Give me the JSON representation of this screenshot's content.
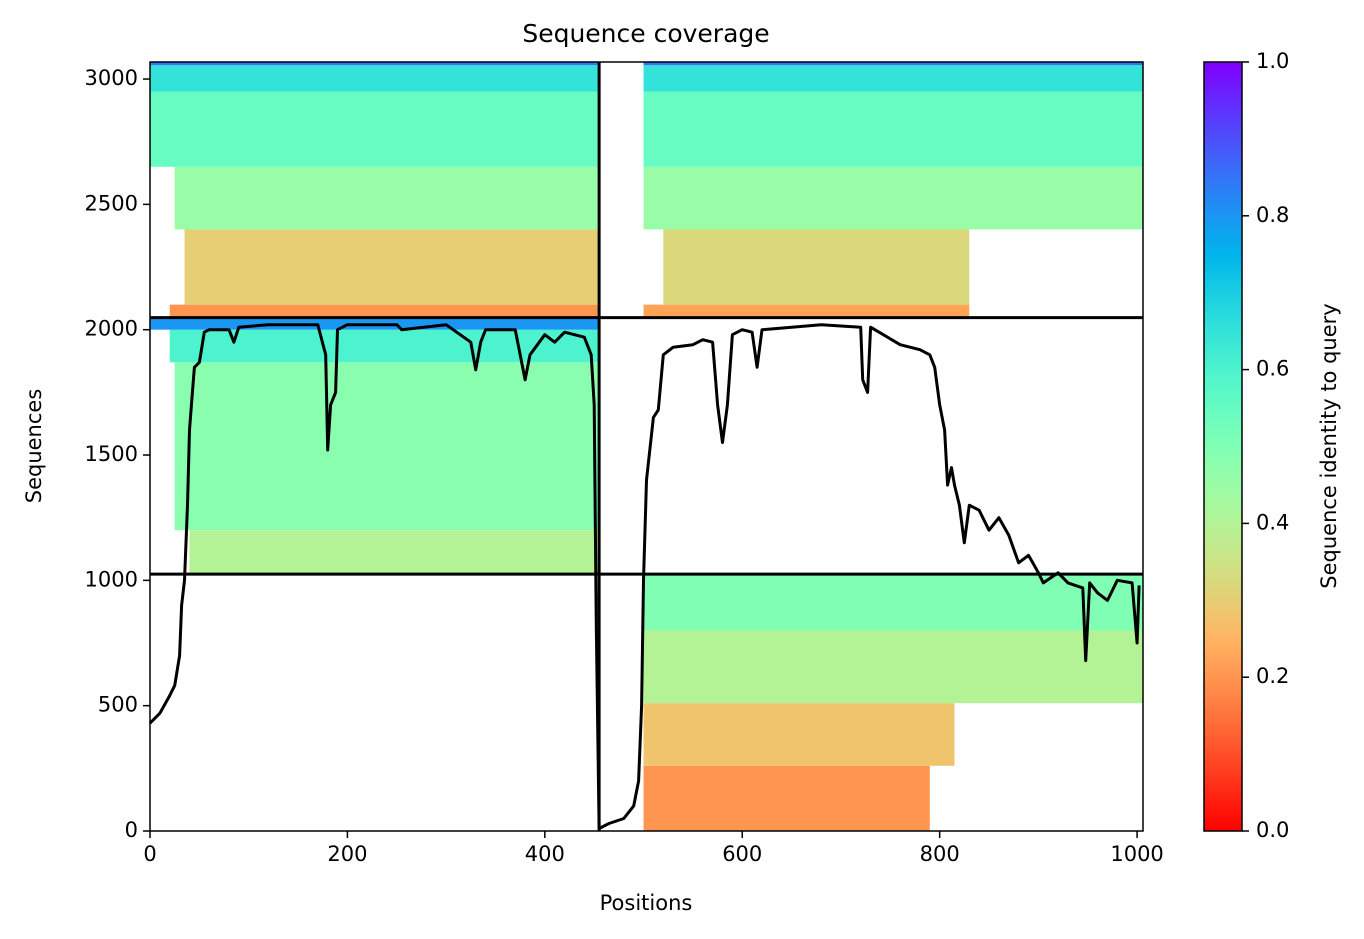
{
  "chart_data": {
    "type": "coverage",
    "title": "Sequence coverage",
    "xlabel": "Positions",
    "ylabel": "Sequences",
    "xlim": [
      0,
      1006
    ],
    "ylim": [
      0,
      3068
    ],
    "xticks": [
      0,
      200,
      400,
      600,
      800,
      1000
    ],
    "yticks": [
      0,
      500,
      1000,
      1500,
      2000,
      2500,
      3000
    ],
    "colormap": "rainbow_r",
    "colorbar": {
      "label": "Sequence identity to query",
      "lim": [
        0,
        1
      ],
      "ticks": [
        {
          "value": 0,
          "label": "0.0"
        },
        0.2,
        0.4,
        0.6,
        0.8,
        {
          "value": 1,
          "label": "1.0"
        }
      ]
    },
    "blocks": [
      {
        "x": [
          20,
          455
        ],
        "y": [
          2048,
          2100
        ],
        "identity": 0.2
      },
      {
        "x": [
          35,
          455
        ],
        "y": [
          2100,
          2400
        ],
        "identity": 0.3
      },
      {
        "x": [
          25,
          455
        ],
        "y": [
          2400,
          2650
        ],
        "identity": 0.45
      },
      {
        "x": [
          0,
          455
        ],
        "y": [
          2650,
          2950
        ],
        "identity": 0.55
      },
      {
        "x": [
          0,
          455
        ],
        "y": [
          2950,
          3055
        ],
        "identity": 0.65
      },
      {
        "x": [
          0,
          455
        ],
        "y": [
          3055,
          3068
        ],
        "identity": 0.85
      },
      {
        "x": [
          500,
          830
        ],
        "y": [
          2048,
          2100
        ],
        "identity": 0.22
      },
      {
        "x": [
          520,
          830
        ],
        "y": [
          2100,
          2400
        ],
        "identity": 0.32
      },
      {
        "x": [
          500,
          1006
        ],
        "y": [
          2400,
          2650
        ],
        "identity": 0.45
      },
      {
        "x": [
          500,
          1006
        ],
        "y": [
          2650,
          2950
        ],
        "identity": 0.55
      },
      {
        "x": [
          500,
          1006
        ],
        "y": [
          2950,
          3055
        ],
        "identity": 0.65
      },
      {
        "x": [
          500,
          1006
        ],
        "y": [
          3055,
          3068
        ],
        "identity": 0.85
      },
      {
        "x": [
          40,
          455
        ],
        "y": [
          1025,
          1200
        ],
        "identity": 0.4
      },
      {
        "x": [
          25,
          455
        ],
        "y": [
          1200,
          1870
        ],
        "identity": 0.48
      },
      {
        "x": [
          20,
          455
        ],
        "y": [
          1870,
          2000
        ],
        "identity": 0.6
      },
      {
        "x": [
          0,
          455
        ],
        "y": [
          2000,
          2048
        ],
        "identity": 0.8
      },
      {
        "x": [
          500,
          790
        ],
        "y": [
          0,
          260
        ],
        "identity": 0.2
      },
      {
        "x": [
          500,
          815
        ],
        "y": [
          260,
          510
        ],
        "identity": 0.28
      },
      {
        "x": [
          500,
          1006
        ],
        "y": [
          510,
          800
        ],
        "identity": 0.4
      },
      {
        "x": [
          500,
          1006
        ],
        "y": [
          800,
          1025
        ],
        "identity": 0.5
      }
    ],
    "dividers": {
      "x": [
        455
      ],
      "y": [
        1025,
        2048
      ]
    },
    "coverage": {
      "color": "#000000",
      "x": [
        0,
        10,
        20,
        25,
        30,
        32,
        35,
        38,
        40,
        43,
        45,
        50,
        55,
        60,
        80,
        85,
        90,
        120,
        170,
        178,
        180,
        183,
        188,
        190,
        200,
        250,
        255,
        300,
        325,
        330,
        335,
        340,
        370,
        375,
        380,
        385,
        400,
        410,
        420,
        440,
        447,
        450,
        452,
        455,
        465,
        480,
        490,
        495,
        498,
        500,
        503,
        510,
        515,
        520,
        530,
        550,
        560,
        570,
        575,
        580,
        585,
        590,
        600,
        610,
        615,
        620,
        650,
        680,
        720,
        722,
        727,
        730,
        760,
        780,
        790,
        795,
        800,
        805,
        808,
        812,
        815,
        820,
        825,
        830,
        840,
        850,
        860,
        870,
        880,
        890,
        900,
        905,
        920,
        930,
        945,
        948,
        952,
        960,
        970,
        980,
        995,
        1000,
        1002
      ],
      "values": [
        430,
        470,
        540,
        580,
        700,
        900,
        1000,
        1300,
        1600,
        1750,
        1850,
        1870,
        1990,
        2000,
        2000,
        1950,
        2010,
        2020,
        2020,
        1900,
        1520,
        1700,
        1750,
        2000,
        2020,
        2020,
        2000,
        2020,
        1950,
        1840,
        1950,
        2000,
        2000,
        1900,
        1800,
        1900,
        1980,
        1950,
        1990,
        1970,
        1900,
        1700,
        850,
        10,
        30,
        50,
        100,
        200,
        500,
        1000,
        1400,
        1650,
        1680,
        1900,
        1930,
        1940,
        1960,
        1950,
        1700,
        1550,
        1700,
        1980,
        2000,
        1990,
        1850,
        2000,
        2010,
        2020,
        2010,
        1800,
        1750,
        2010,
        1940,
        1920,
        1900,
        1850,
        1700,
        1600,
        1380,
        1450,
        1380,
        1300,
        1150,
        1300,
        1280,
        1200,
        1250,
        1180,
        1070,
        1100,
        1030,
        990,
        1030,
        990,
        970,
        680,
        990,
        950,
        920,
        1000,
        990,
        750,
        980
      ]
    }
  }
}
